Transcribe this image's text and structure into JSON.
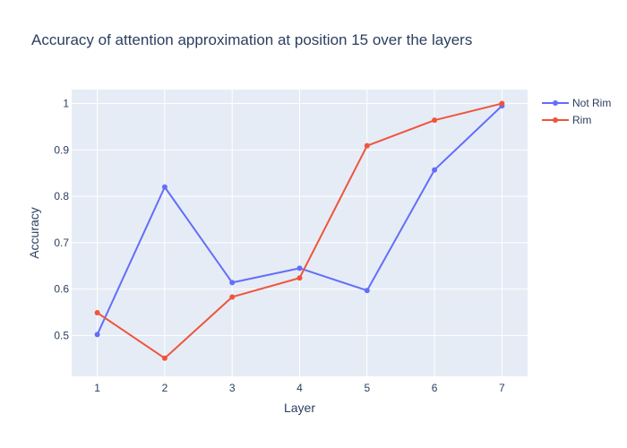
{
  "chart_data": {
    "type": "line",
    "title": "Accuracy of attention approximation at position 15 over the layers",
    "xlabel": "Layer",
    "ylabel": "Accuracy",
    "x": [
      1,
      2,
      3,
      4,
      5,
      6,
      7
    ],
    "xlim": [
      0.62,
      7.38
    ],
    "ylim": [
      0.412,
      1.03
    ],
    "x_ticks": [
      "1",
      "2",
      "3",
      "4",
      "5",
      "6",
      "7"
    ],
    "y_ticks": [
      "0.5",
      "0.6",
      "0.7",
      "0.8",
      "0.9",
      "1"
    ],
    "grid": true,
    "legend_position": "top-right",
    "series": [
      {
        "name": "Not Rim",
        "color": "#636efa",
        "values": [
          0.502,
          0.82,
          0.614,
          0.645,
          0.597,
          0.857,
          0.995
        ]
      },
      {
        "name": "Rim",
        "color": "#ef553b",
        "values": [
          0.549,
          0.451,
          0.583,
          0.624,
          0.909,
          0.964,
          1.0
        ]
      }
    ],
    "plot_background": "#e5ecf6",
    "grid_color": "#ffffff"
  }
}
